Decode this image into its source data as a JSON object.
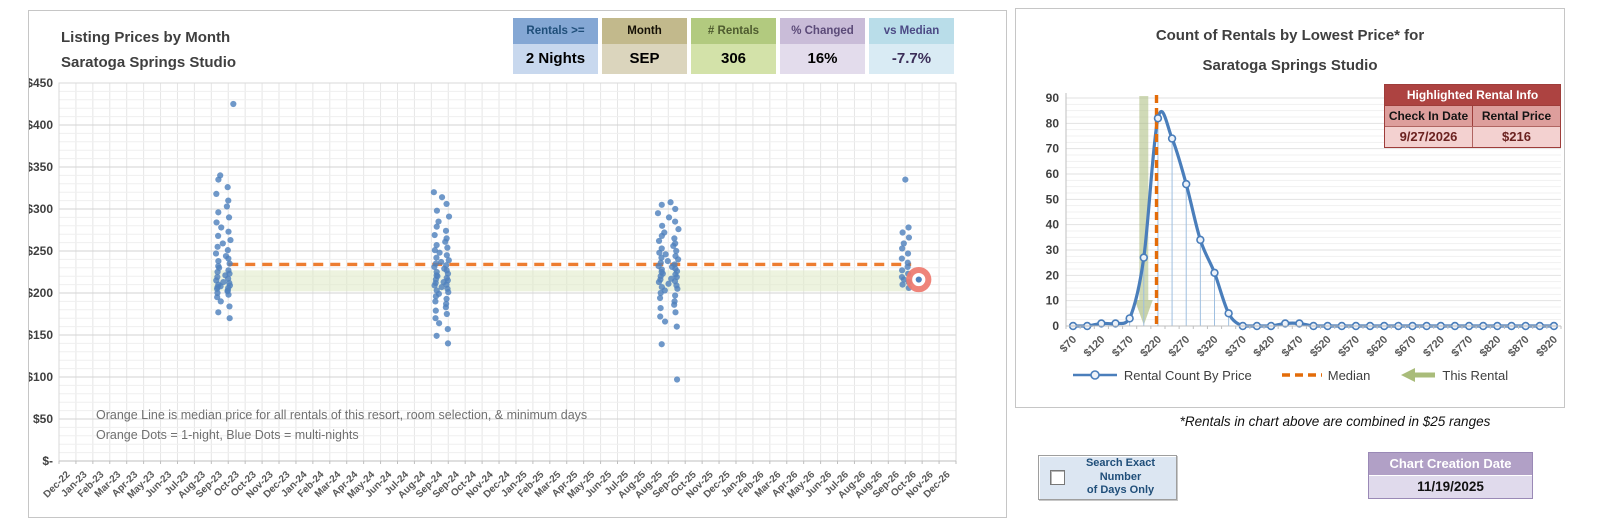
{
  "left_panel": {
    "title_line1": "Listing Prices by Month",
    "title_line2": "Saratoga Springs Studio",
    "stats": [
      {
        "label": "Rentals >=",
        "value": "2 Nights",
        "header_bg": "#84a7d4",
        "header_color": "#1f4e79",
        "value_bg": "#c8d8ee",
        "value_color": "#000000"
      },
      {
        "label": "Month",
        "value": "SEP",
        "header_bg": "#c2b98c",
        "header_color": "#151005",
        "value_bg": "#dbd5bd",
        "value_color": "#000000"
      },
      {
        "label": "# Rentals",
        "value": "306",
        "header_bg": "#b2ca7f",
        "header_color": "#4e5b2f",
        "value_bg": "#d3e2a9",
        "value_color": "#000000"
      },
      {
        "label": "% Changed",
        "value": "16%",
        "header_bg": "#c9bcd8",
        "header_color": "#5b4a78",
        "value_bg": "#e3dcec",
        "value_color": "#000000"
      },
      {
        "label": "vs Median",
        "value": "-7.7%",
        "header_bg": "#b9dde9",
        "header_color": "#4c4a85",
        "value_bg": "#d9ebf4",
        "value_color": "#3b2e58"
      }
    ],
    "annotation_line1": "Orange Line is median price for all rentals of this resort, room selection, & minimum days",
    "annotation_line2": "Orange Dots = 1-night, Blue Dots = multi-nights"
  },
  "right_panel": {
    "title_line1": "Count of Rentals by Lowest Price* for",
    "title_line2": "Saratoga Springs Studio",
    "table": {
      "title": "Highlighted Rental Info",
      "col1": "Check In Date",
      "col2": "Rental Price",
      "check_in": "9/27/2026",
      "price": "$216"
    },
    "legend": [
      "Rental Count By Price",
      "Median",
      "This Rental"
    ],
    "footnote": "*Rentals in chart above are combined in $25 ranges"
  },
  "controls": {
    "checkbox_label_line1": "Search Exact Number",
    "checkbox_label_line2": "of Days Only",
    "checkbox_checked": false,
    "chart_creation_label": "Chart Creation Date",
    "chart_creation_date": "11/19/2025"
  },
  "colors": {
    "dot_blue": "#4f81bd",
    "orange_median": "#ed7d31",
    "orange_median_vertical": "#e36c09",
    "olive_band": "#aabc7c",
    "highlight_ring": "#ee7a6f",
    "curve_blue": "#4a7ebb"
  },
  "chart_data": [
    {
      "type": "scatter",
      "title": "Listing Prices by Month - Saratoga Springs Studio",
      "y_ticks": [
        "$-",
        "$50",
        "$100",
        "$150",
        "$200",
        "$250",
        "$300",
        "$350",
        "$400",
        "$450"
      ],
      "ylim": [
        0,
        450
      ],
      "x_categories": [
        "Dec-22",
        "Jan-23",
        "Feb-23",
        "Mar-23",
        "Apr-23",
        "May-23",
        "Jun-23",
        "Jul-23",
        "Aug-23",
        "Sep-23",
        "Oct-23",
        "Oct-23",
        "Nov-23",
        "Dec-23",
        "Jan-24",
        "Feb-24",
        "Mar-24",
        "Apr-24",
        "May-24",
        "Jun-24",
        "Jul-24",
        "Aug-24",
        "Sep-24",
        "Sep-24",
        "Oct-24",
        "Nov-24",
        "Dec-24",
        "Jan-25",
        "Feb-25",
        "Mar-25",
        "Apr-25",
        "May-25",
        "Jun-25",
        "Jul-25",
        "Aug-25",
        "Aug-25",
        "Sep-25",
        "Oct-25",
        "Nov-25",
        "Dec-25",
        "Jan-26",
        "Feb-26",
        "Mar-26",
        "Apr-26",
        "May-26",
        "Jun-26",
        "Jul-26",
        "Aug-26",
        "Aug-26",
        "Sep-26",
        "Oct-26",
        "Nov-26",
        "Dec-26"
      ],
      "median_line_value": 234,
      "highlight_band_price_range": [
        202,
        227
      ],
      "clusters": [
        {
          "label": "Sep-23",
          "center": 9.2,
          "spread": 1.0,
          "prices": [
            170,
            177,
            184,
            190,
            195,
            198,
            200,
            202,
            203,
            205,
            206,
            207,
            208,
            209,
            210,
            212,
            213,
            215,
            217,
            219,
            221,
            223,
            225,
            227,
            230,
            232,
            235,
            238,
            241,
            244,
            247,
            251,
            255,
            259,
            263,
            268,
            273,
            278,
            284,
            290,
            296,
            303,
            310,
            318,
            326,
            335,
            340
          ]
        },
        {
          "label": "Oct-23",
          "center": 9.8,
          "spread": 0,
          "prices": [
            425
          ]
        },
        {
          "label": "Sep-24",
          "center": 22.1,
          "spread": 1.0,
          "prices": [
            140,
            149,
            157,
            164,
            170,
            175,
            179,
            183,
            187,
            190,
            193,
            196,
            199,
            201,
            203,
            205,
            207,
            209,
            210,
            212,
            213,
            215,
            216,
            218,
            220,
            221,
            223,
            225,
            227,
            229,
            231,
            233,
            235,
            237,
            239,
            242,
            245,
            248,
            251,
            254,
            257,
            261,
            265,
            269,
            274,
            279,
            285,
            291,
            298,
            306,
            314,
            320
          ]
        },
        {
          "label": "Sep-25",
          "center": 35.5,
          "spread": 1.35,
          "prices": [
            97,
            139,
            160,
            166,
            172,
            177,
            182,
            186,
            190,
            194,
            197,
            200,
            203,
            205,
            207,
            209,
            211,
            213,
            214,
            216,
            217,
            219,
            220,
            222,
            223,
            225,
            226,
            228,
            229,
            231,
            232,
            234,
            236,
            238,
            240,
            242,
            244,
            246,
            248,
            250,
            253,
            256,
            259,
            262,
            265,
            268,
            272,
            276,
            280,
            285,
            290,
            295,
            300,
            305,
            308
          ]
        },
        {
          "label": "Sep-26",
          "center": 49.5,
          "spread": 0.55,
          "prices": [
            206,
            210,
            213,
            216,
            219,
            223,
            227,
            231,
            236,
            241,
            247,
            253,
            259,
            266,
            272,
            278,
            335
          ]
        }
      ],
      "highlighted_point": {
        "category_index": 50.3,
        "price": 216
      }
    },
    {
      "type": "line",
      "title": "Count of Rentals by Lowest Price - Saratoga Springs Studio",
      "bin_size": 25,
      "bins": [
        70,
        95,
        120,
        145,
        170,
        195,
        220,
        245,
        270,
        295,
        320,
        345,
        370,
        395,
        420,
        445,
        470,
        495,
        520,
        545,
        570,
        595,
        620,
        645,
        670,
        695,
        720,
        745,
        770,
        795,
        820,
        845,
        870,
        895,
        920
      ],
      "values": [
        0,
        0,
        1,
        1,
        3,
        27,
        82,
        74,
        56,
        34,
        21,
        5,
        0,
        0,
        0,
        1,
        1,
        0,
        0,
        0,
        0,
        0,
        0,
        0,
        0,
        0,
        0,
        0,
        0,
        0,
        0,
        0,
        0,
        0,
        0
      ],
      "x_tick_labels": [
        "$70",
        "$120",
        "$170",
        "$220",
        "$270",
        "$320",
        "$370",
        "$420",
        "$470",
        "$520",
        "$570",
        "$620",
        "$670",
        "$720",
        "$770",
        "$820",
        "$870",
        "$920"
      ],
      "ylim": [
        0,
        90
      ],
      "y_tick_step": 10,
      "median_marker_bin_index": 5.9,
      "this_rental_bin_index": 5.0,
      "legend_position": "bottom"
    }
  ]
}
